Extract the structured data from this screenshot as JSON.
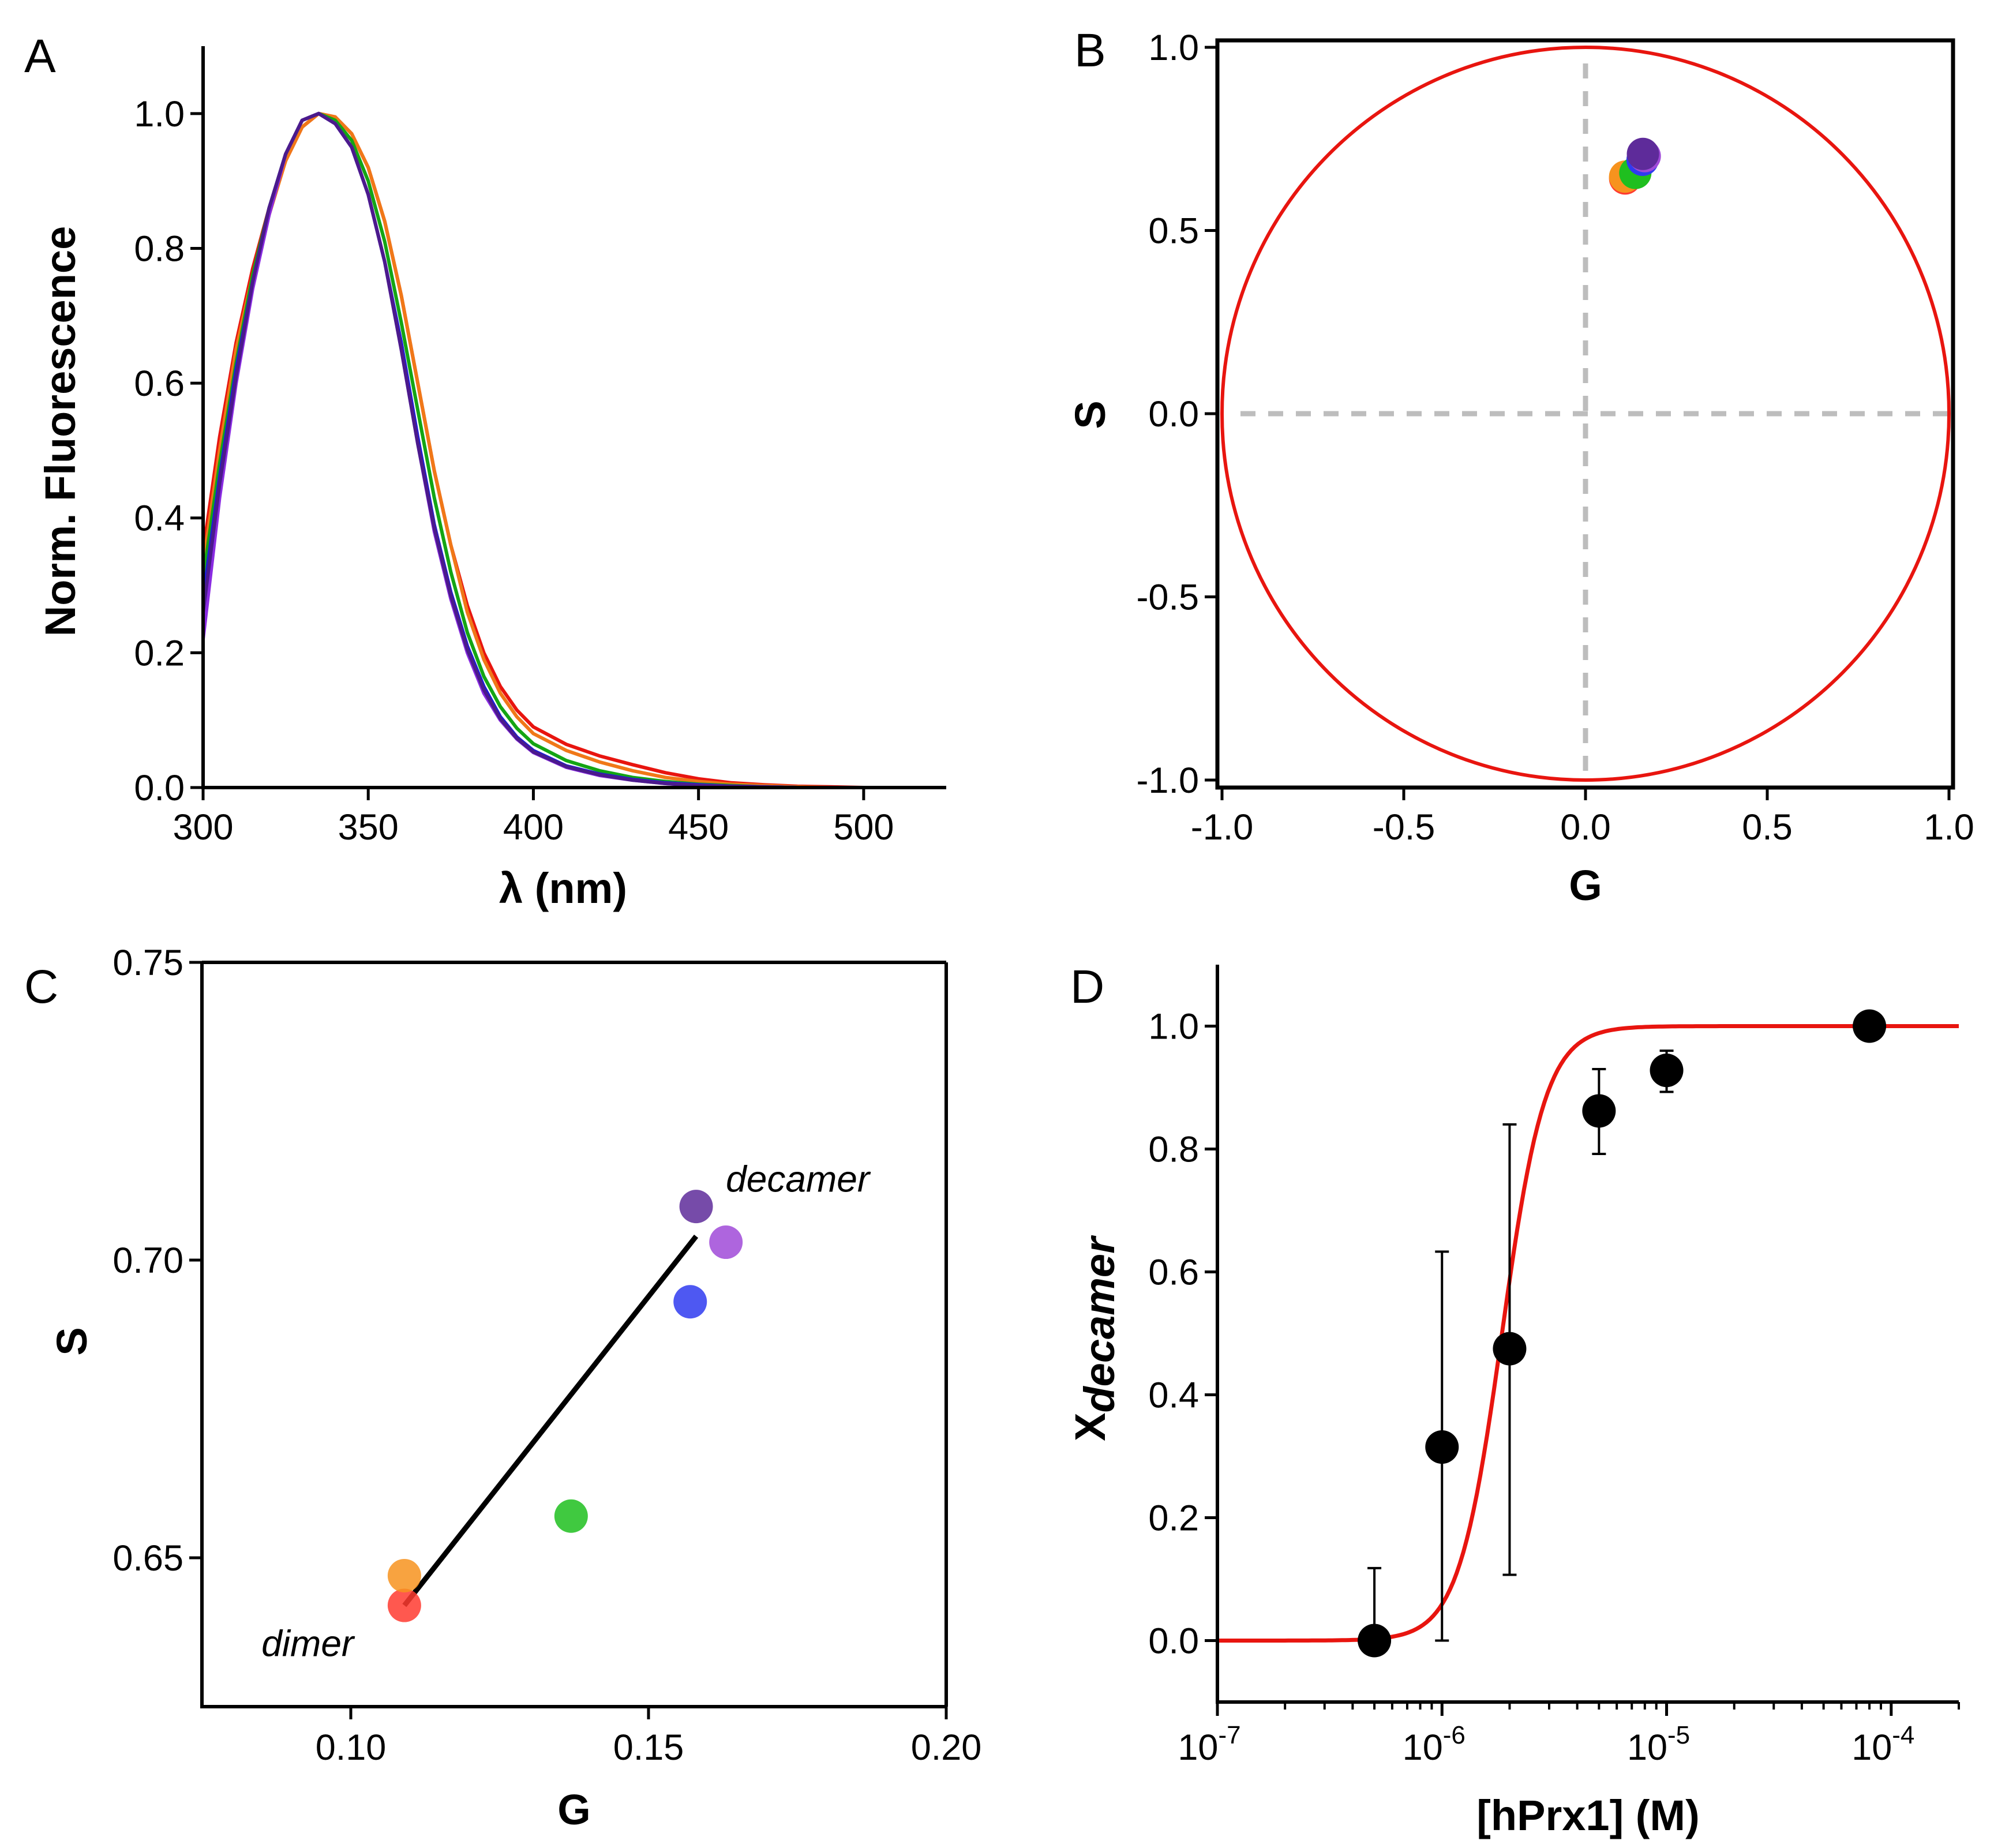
{
  "chart_data": [
    {
      "panel": "A",
      "type": "line",
      "xlabel": "λ (nm)",
      "ylabel": "Norm. Fluorescence",
      "xlim": [
        300,
        525
      ],
      "ylim": [
        0,
        1.1
      ],
      "xticks": [
        300,
        350,
        400,
        450,
        500
      ],
      "yticks": [
        0.0,
        0.2,
        0.4,
        0.6,
        0.8,
        1.0
      ],
      "xtick_labels": [
        "300",
        "350",
        "400",
        "450",
        "500"
      ],
      "ytick_labels": [
        "0.0",
        "0.2",
        "0.4",
        "0.6",
        "0.8",
        "1.0"
      ],
      "series": [
        {
          "name": "red",
          "color": "#e8150f",
          "x": [
            300,
            305,
            310,
            315,
            320,
            325,
            330,
            335,
            340,
            345,
            350,
            355,
            360,
            365,
            370,
            375,
            380,
            385,
            390,
            395,
            400,
            410,
            420,
            430,
            440,
            450,
            460,
            470,
            480,
            490,
            500
          ],
          "values": [
            0.35,
            0.52,
            0.66,
            0.77,
            0.86,
            0.93,
            0.98,
            1.0,
            0.995,
            0.97,
            0.92,
            0.84,
            0.73,
            0.6,
            0.47,
            0.36,
            0.27,
            0.2,
            0.15,
            0.115,
            0.09,
            0.064,
            0.047,
            0.034,
            0.022,
            0.013,
            0.007,
            0.004,
            0.002,
            0.001,
            0.0
          ]
        },
        {
          "name": "orange",
          "color": "#f07818",
          "x": [
            300,
            305,
            310,
            315,
            320,
            325,
            330,
            335,
            340,
            345,
            350,
            355,
            360,
            365,
            370,
            375,
            380,
            385,
            390,
            395,
            400,
            410,
            420,
            430,
            440,
            450,
            460,
            470,
            480,
            490,
            500
          ],
          "values": [
            0.33,
            0.5,
            0.65,
            0.76,
            0.85,
            0.93,
            0.98,
            1.0,
            0.995,
            0.97,
            0.92,
            0.84,
            0.73,
            0.6,
            0.47,
            0.36,
            0.26,
            0.19,
            0.14,
            0.105,
            0.08,
            0.055,
            0.038,
            0.025,
            0.015,
            0.009,
            0.005,
            0.003,
            0.001,
            0.0,
            0.0
          ]
        },
        {
          "name": "green",
          "color": "#14a514",
          "x": [
            300,
            305,
            310,
            315,
            320,
            325,
            330,
            335,
            340,
            345,
            350,
            355,
            360,
            365,
            370,
            375,
            380,
            385,
            390,
            395,
            400,
            410,
            420,
            430,
            440,
            450,
            460,
            470,
            480,
            490,
            500
          ],
          "values": [
            0.31,
            0.48,
            0.63,
            0.76,
            0.86,
            0.94,
            0.99,
            1.0,
            0.99,
            0.96,
            0.9,
            0.81,
            0.69,
            0.56,
            0.43,
            0.32,
            0.23,
            0.165,
            0.12,
            0.088,
            0.065,
            0.04,
            0.025,
            0.015,
            0.009,
            0.005,
            0.003,
            0.001,
            0.0,
            0.0,
            0.0
          ]
        },
        {
          "name": "blue",
          "color": "#1c1cd8",
          "x": [
            300,
            305,
            310,
            315,
            320,
            325,
            330,
            335,
            340,
            345,
            350,
            355,
            360,
            365,
            370,
            375,
            380,
            385,
            390,
            395,
            400,
            410,
            420,
            430,
            440,
            450,
            460,
            470,
            480,
            490,
            500
          ],
          "values": [
            0.28,
            0.46,
            0.62,
            0.75,
            0.86,
            0.94,
            0.99,
            1.0,
            0.985,
            0.95,
            0.88,
            0.78,
            0.66,
            0.52,
            0.39,
            0.29,
            0.21,
            0.15,
            0.105,
            0.075,
            0.055,
            0.032,
            0.02,
            0.012,
            0.007,
            0.004,
            0.002,
            0.001,
            0.0,
            0.0,
            0.0
          ]
        },
        {
          "name": "purple",
          "color": "#8a2be2",
          "x": [
            300,
            305,
            310,
            315,
            320,
            325,
            330,
            335,
            340,
            345,
            350,
            355,
            360,
            365,
            370,
            375,
            380,
            385,
            390,
            395,
            400,
            410,
            420,
            430,
            440,
            450,
            460,
            470,
            480,
            490,
            500
          ],
          "values": [
            0.22,
            0.43,
            0.6,
            0.74,
            0.85,
            0.94,
            0.99,
            1.0,
            0.985,
            0.95,
            0.88,
            0.78,
            0.65,
            0.51,
            0.38,
            0.28,
            0.2,
            0.14,
            0.1,
            0.072,
            0.052,
            0.03,
            0.018,
            0.011,
            0.006,
            0.003,
            0.002,
            0.001,
            0.0,
            0.0,
            0.0
          ]
        },
        {
          "name": "indigo",
          "color": "#4b1a8c",
          "x": [
            300,
            305,
            310,
            315,
            320,
            325,
            330,
            335,
            340,
            345,
            350,
            355,
            360,
            365,
            370,
            375,
            380,
            385,
            390,
            395,
            400,
            410,
            420,
            430,
            440,
            450,
            460,
            470,
            480,
            490,
            500
          ],
          "values": [
            0.26,
            0.45,
            0.61,
            0.75,
            0.86,
            0.94,
            0.99,
            1.0,
            0.985,
            0.95,
            0.88,
            0.78,
            0.65,
            0.51,
            0.385,
            0.285,
            0.205,
            0.145,
            0.102,
            0.073,
            0.053,
            0.031,
            0.019,
            0.011,
            0.006,
            0.003,
            0.002,
            0.001,
            0.0,
            0.0,
            0.0
          ]
        }
      ]
    },
    {
      "panel": "B",
      "type": "scatter",
      "xlabel": "G",
      "ylabel": "S",
      "xlim": [
        -1.0,
        1.0
      ],
      "ylim": [
        -1.0,
        1.0
      ],
      "xticks": [
        -1.0,
        -0.5,
        0.0,
        0.5,
        1.0
      ],
      "yticks": [
        -1.0,
        -0.5,
        0.0,
        0.5,
        1.0
      ],
      "xtick_labels": [
        "-1.0",
        "-0.5",
        "0.0",
        "0.5",
        "1.0"
      ],
      "ytick_labels": [
        "-1.0",
        "-0.5",
        "0.0",
        "0.5",
        "1.0"
      ],
      "circle": {
        "center": [
          0,
          0
        ],
        "radius": 1.0,
        "color": "#e8150f"
      },
      "points": [
        {
          "g": 0.109,
          "s": 0.642,
          "color": "#ff3b30"
        },
        {
          "g": 0.109,
          "s": 0.647,
          "color": "#f7931e"
        },
        {
          "g": 0.137,
          "s": 0.657,
          "color": "#1fbf1f"
        },
        {
          "g": 0.157,
          "s": 0.693,
          "color": "#2f3bf0"
        },
        {
          "g": 0.163,
          "s": 0.703,
          "color": "#a04ad8"
        },
        {
          "g": 0.158,
          "s": 0.709,
          "color": "#5e2b9a"
        }
      ]
    },
    {
      "panel": "C",
      "type": "scatter",
      "xlabel": "G",
      "ylabel": "S",
      "xlim": [
        0.075,
        0.2
      ],
      "ylim": [
        0.625,
        0.75
      ],
      "xticks": [
        0.1,
        0.15,
        0.2
      ],
      "yticks": [
        0.65,
        0.7,
        0.75
      ],
      "xtick_labels": [
        "0.10",
        "0.15",
        "0.20"
      ],
      "ytick_labels": [
        "0.65",
        "0.70",
        "0.75"
      ],
      "line": {
        "x": [
          0.109,
          0.158
        ],
        "y": [
          0.642,
          0.704
        ]
      },
      "points": [
        {
          "g": 0.109,
          "s": 0.642,
          "color": "#ff3b30"
        },
        {
          "g": 0.109,
          "s": 0.647,
          "color": "#f7931e"
        },
        {
          "g": 0.137,
          "s": 0.657,
          "color": "#1fbf1f"
        },
        {
          "g": 0.157,
          "s": 0.693,
          "color": "#2f3bf0"
        },
        {
          "g": 0.163,
          "s": 0.703,
          "color": "#a04ad8"
        },
        {
          "g": 0.158,
          "s": 0.709,
          "color": "#5e2b9a"
        }
      ],
      "annotations": [
        {
          "text": "decamer",
          "x": 0.163,
          "y": 0.7115
        },
        {
          "text": "dimer",
          "x": 0.085,
          "y": 0.6335
        }
      ]
    },
    {
      "panel": "D",
      "type": "scatter",
      "xscale": "log",
      "xlabel": "[hPrx1] (M)",
      "ylabel_base": "X",
      "ylabel_sub": "decamer",
      "xlim": [
        1e-07,
        0.0002
      ],
      "ylim": [
        -0.1,
        1.1
      ],
      "xticks": [
        1e-07,
        1e-06,
        1e-05,
        0.0001
      ],
      "xtick_base": "10",
      "xtick_exponents": [
        "-7",
        "-6",
        "-5",
        "-4"
      ],
      "yticks": [
        0.0,
        0.2,
        0.4,
        0.6,
        0.8,
        1.0
      ],
      "ytick_labels": [
        "0.0",
        "0.2",
        "0.4",
        "0.6",
        "0.8",
        "1.0"
      ],
      "points": [
        {
          "x": 5e-07,
          "y": 0.0,
          "err_up": 0.118,
          "err_down": 0.0
        },
        {
          "x": 1e-06,
          "y": 0.315,
          "err_up": 0.318,
          "err_down": 0.315
        },
        {
          "x": 2e-06,
          "y": 0.475,
          "err_up": 0.365,
          "err_down": 0.368
        },
        {
          "x": 5e-06,
          "y": 0.862,
          "err_up": 0.068,
          "err_down": 0.07
        },
        {
          "x": 1e-05,
          "y": 0.928,
          "err_up": 0.032,
          "err_down": 0.035
        },
        {
          "x": 8e-05,
          "y": 1.0,
          "err_up": 0.0,
          "err_down": 0.0
        }
      ],
      "fit": {
        "midpoint": 1.85e-06,
        "hill": 4.5,
        "color": "#e8150f"
      }
    }
  ]
}
